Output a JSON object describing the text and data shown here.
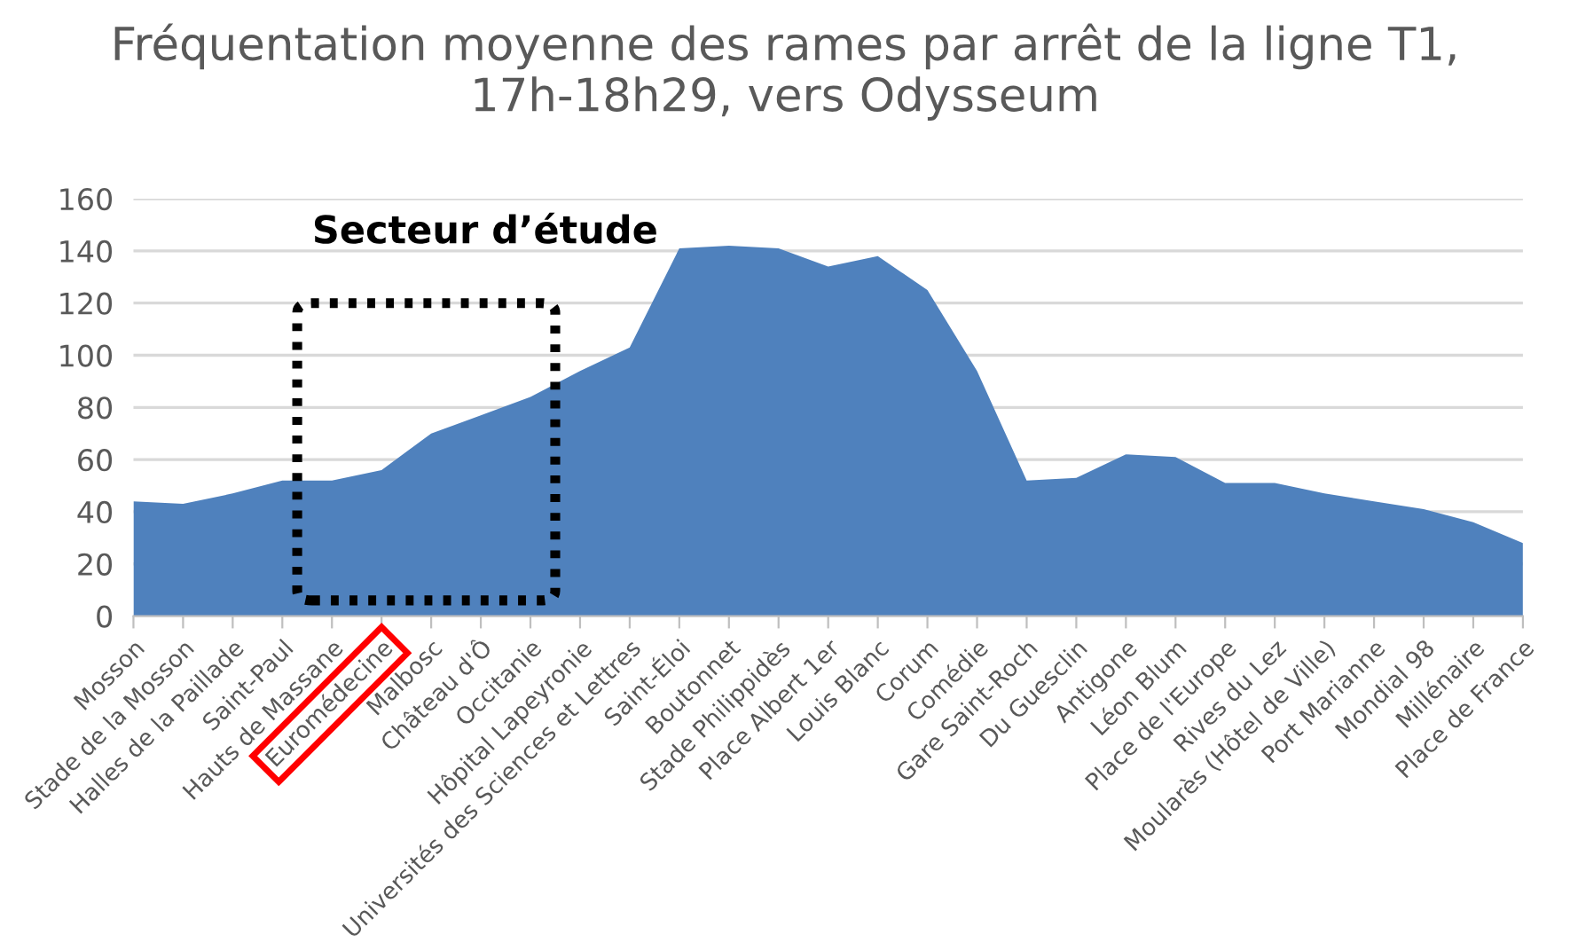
{
  "chart_data": {
    "type": "area",
    "title": "Fréquentation moyenne des rames par arrêt de la ligne T1, 17h-18h29, vers Odysseum",
    "categories": [
      "Mosson",
      "Stade de la Mosson",
      "Halles de la Paillade",
      "Saint-Paul",
      "Hauts de Massane",
      "Euromédecine",
      "Malbosc",
      "Château d'Ô",
      "Occitanie",
      "Hôpital Lapeyronie",
      "Universités des Sciences et Lettres",
      "Saint-Éloi",
      "Boutonnet",
      "Stade Philippidès",
      "Place Albert 1er",
      "Louis Blanc",
      "Corum",
      "Comédie",
      "Gare Saint-Roch",
      "Du Guesclin",
      "Antigone",
      "Léon Blum",
      "Place de l'Europe",
      "Rives du Lez",
      "Moularès (Hôtel de Ville)",
      "Port Marianne",
      "Mondial 98",
      "Millénaire",
      "Place de France"
    ],
    "series": [
      {
        "color": "#4f81bd",
        "values": [
          44,
          43,
          47,
          52,
          52,
          56,
          70,
          77,
          84,
          94,
          103,
          141,
          142,
          141,
          134,
          138,
          125,
          94,
          52,
          53,
          62,
          61,
          51,
          51,
          47,
          44,
          41,
          36,
          28
        ]
      }
    ],
    "ylim": [
      0,
      160
    ],
    "yticks": [
      0,
      20,
      40,
      60,
      80,
      100,
      120,
      140,
      160
    ],
    "grid": "y",
    "legend": false,
    "annotations": [
      "Secteur d’étude"
    ]
  }
}
